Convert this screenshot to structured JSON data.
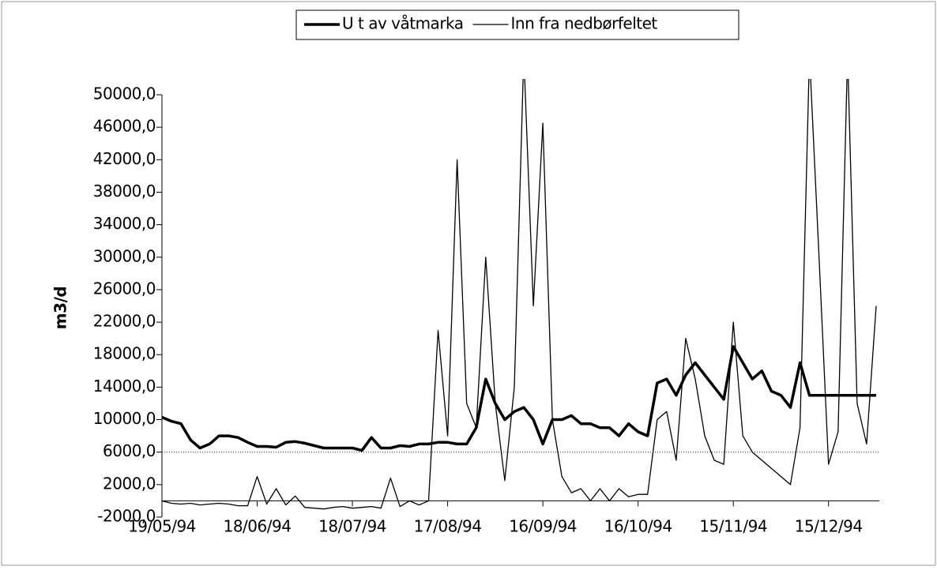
{
  "chart_data": {
    "type": "line",
    "y_label": "m3/d",
    "x": [
      "19/05/94",
      "22/05/94",
      "25/05/94",
      "28/05/94",
      "31/05/94",
      "03/06/94",
      "06/06/94",
      "09/06/94",
      "12/06/94",
      "15/06/94",
      "18/06/94",
      "21/06/94",
      "24/06/94",
      "27/06/94",
      "30/06/94",
      "03/07/94",
      "06/07/94",
      "09/07/94",
      "12/07/94",
      "15/07/94",
      "18/07/94",
      "21/07/94",
      "24/07/94",
      "27/07/94",
      "30/07/94",
      "02/08/94",
      "05/08/94",
      "08/08/94",
      "11/08/94",
      "14/08/94",
      "17/08/94",
      "20/08/94",
      "23/08/94",
      "26/08/94",
      "29/08/94",
      "01/09/94",
      "04/09/94",
      "07/09/94",
      "10/09/94",
      "13/09/94",
      "16/09/94",
      "19/09/94",
      "22/09/94",
      "25/09/94",
      "28/09/94",
      "01/10/94",
      "04/10/94",
      "07/10/94",
      "10/10/94",
      "13/10/94",
      "16/10/94",
      "19/10/94",
      "22/10/94",
      "25/10/94",
      "28/10/94",
      "31/10/94",
      "03/11/94",
      "06/11/94",
      "09/11/94",
      "12/11/94",
      "15/11/94",
      "18/11/94",
      "21/11/94",
      "24/11/94",
      "27/11/94",
      "30/11/94",
      "03/12/94",
      "06/12/94",
      "09/12/94",
      "12/12/94",
      "15/12/94",
      "18/12/94",
      "21/12/94",
      "24/12/94",
      "27/12/94",
      "30/12/94"
    ],
    "series": [
      {
        "name": "U t av våtmarka",
        "color": "#000000",
        "width": 3.5,
        "values": [
          10300,
          9800,
          9500,
          7500,
          6500,
          7000,
          8000,
          8000,
          7800,
          7200,
          6700,
          6700,
          6600,
          7200,
          7300,
          7100,
          6800,
          6500,
          6500,
          6500,
          6500,
          6200,
          7800,
          6500,
          6500,
          6800,
          6700,
          7000,
          7000,
          7200,
          7200,
          7000,
          7000,
          9000,
          15000,
          12000,
          10000,
          11000,
          11500,
          10000,
          7000,
          10000,
          10000,
          10500,
          9500,
          9500,
          9000,
          9000,
          8000,
          9500,
          8500,
          8000,
          14500,
          15000,
          13000,
          15500,
          17000,
          15500,
          14000,
          12500,
          19000,
          17000,
          15000,
          16000,
          13500,
          13000,
          11500,
          17000,
          13000,
          13000,
          13000,
          13000,
          13000,
          13000,
          13000,
          13000
        ]
      },
      {
        "name": "Inn fra nedbørfeltet",
        "color": "#000000",
        "width": 1.3,
        "values": [
          0,
          -300,
          -400,
          -300,
          -500,
          -400,
          -300,
          -400,
          -600,
          -600,
          3000,
          -400,
          1500,
          -500,
          600,
          -800,
          -900,
          -1000,
          -800,
          -700,
          -900,
          -800,
          -700,
          -900,
          2800,
          -700,
          0,
          -500,
          0,
          21000,
          8000,
          42000,
          12000,
          9000,
          30000,
          12000,
          2500,
          14000,
          55000,
          24000,
          46500,
          10000,
          3000,
          1000,
          1500,
          0,
          1500,
          0,
          1500,
          500,
          800,
          800,
          10000,
          11000,
          5000,
          20000,
          15000,
          8000,
          5000,
          4500,
          22000,
          8000,
          6000,
          5000,
          4000,
          3000,
          2000,
          9000,
          55000,
          30000,
          4500,
          8500,
          55000,
          12000,
          7000,
          24000
        ]
      }
    ],
    "xlim": [
      "19/05/94",
      "31/12/94"
    ],
    "xticks": [
      "19/05/94",
      "18/06/94",
      "18/07/94",
      "17/08/94",
      "16/09/94",
      "16/10/94",
      "15/11/94",
      "15/12/94"
    ],
    "ylim": [
      -2000,
      50000
    ],
    "yticks": [
      {
        "value": -2000,
        "label": "-2000,0"
      },
      {
        "value": 2000,
        "label": "2000,0"
      },
      {
        "value": 6000,
        "label": "6000,0"
      },
      {
        "value": 10000,
        "label": "10000,0"
      },
      {
        "value": 14000,
        "label": "14000,0"
      },
      {
        "value": 18000,
        "label": "18000,0"
      },
      {
        "value": 22000,
        "label": "22000,0"
      },
      {
        "value": 26000,
        "label": "26000,0"
      },
      {
        "value": 30000,
        "label": "30000,0"
      },
      {
        "value": 34000,
        "label": "34000,0"
      },
      {
        "value": 38000,
        "label": "38000,0"
      },
      {
        "value": 42000,
        "label": "42000,0"
      },
      {
        "value": 46000,
        "label": "46000,0"
      },
      {
        "value": 50000,
        "label": "50000,0"
      }
    ],
    "x_axis_at": 0,
    "reference_line": 6000,
    "legend": "top"
  }
}
